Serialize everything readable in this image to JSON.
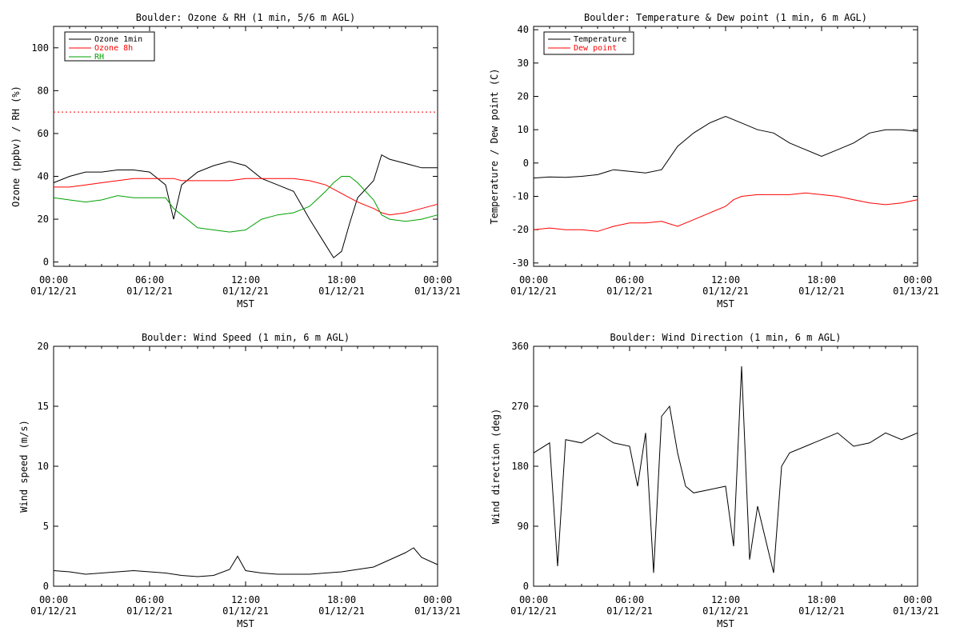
{
  "panels": {
    "ozone": {
      "title": "Boulder: Ozone & RH (1 min, 5/6 m AGL)",
      "ylabel": "Ozone (ppbv) / RH (%)",
      "xlabel": "MST",
      "legend": [
        {
          "label": "Ozone 1min",
          "color": "#000000"
        },
        {
          "label": "Ozone 8h",
          "color": "#ff0000"
        },
        {
          "label": "RH",
          "color": "#00a000"
        }
      ]
    },
    "temp": {
      "title": "Boulder: Temperature & Dew point (1 min, 6 m AGL)",
      "ylabel": "Temperature / Dew point (C)",
      "xlabel": "MST",
      "legend": [
        {
          "label": "Temperature",
          "color": "#000000"
        },
        {
          "label": "Dew point",
          "color": "#ff0000"
        }
      ]
    },
    "ws": {
      "title": "Boulder: Wind Speed (1 min, 6 m AGL)",
      "ylabel": "Wind speed (m/s)",
      "xlabel": "MST"
    },
    "wd": {
      "title": "Boulder: Wind Direction (1 min, 6 m AGL)",
      "ylabel": "Wind direction (deg)",
      "xlabel": "MST"
    }
  },
  "x_ticks": [
    {
      "time": "00:00",
      "date": "01/12/21"
    },
    {
      "time": "06:00",
      "date": "01/12/21"
    },
    {
      "time": "12:00",
      "date": "01/12/21"
    },
    {
      "time": "18:00",
      "date": "01/12/21"
    },
    {
      "time": "00:00",
      "date": "01/13/21"
    }
  ],
  "chart_data": [
    {
      "type": "line",
      "title": "Boulder: Ozone & RH (1 min, 5/6 m AGL)",
      "xlabel": "MST",
      "ylabel": "Ozone (ppbv) / RH (%)",
      "x_unit": "hour MST",
      "xlim": [
        0,
        24
      ],
      "ylim": [
        -2,
        110
      ],
      "yticks": [
        0,
        20,
        40,
        60,
        80,
        100
      ],
      "reference_line": {
        "y": 70,
        "style": "dotted",
        "color": "#ff0000"
      },
      "x": [
        0,
        1,
        2,
        3,
        4,
        5,
        6,
        7,
        7.5,
        8,
        9,
        10,
        11,
        12,
        13,
        14,
        15,
        16,
        17,
        17.5,
        18,
        18.5,
        19,
        20,
        20.5,
        21,
        22,
        23,
        24
      ],
      "series": [
        {
          "name": "Ozone 1min",
          "color": "#000000",
          "values": [
            37,
            40,
            42,
            42,
            43,
            43,
            42,
            36,
            20,
            36,
            42,
            45,
            47,
            45,
            39,
            36,
            33,
            20,
            8,
            2,
            5,
            18,
            30,
            38,
            50,
            48,
            46,
            44,
            44
          ]
        },
        {
          "name": "Ozone 8h",
          "color": "#ff0000",
          "values": [
            35,
            35,
            36,
            37,
            38,
            39,
            39,
            39,
            39,
            38,
            38,
            38,
            38,
            39,
            39,
            39,
            39,
            38,
            36,
            34,
            32,
            30,
            28,
            25,
            23,
            22,
            23,
            25,
            27
          ]
        },
        {
          "name": "RH",
          "color": "#00a000",
          "values": [
            30,
            29,
            28,
            29,
            31,
            30,
            30,
            30,
            25,
            22,
            16,
            15,
            14,
            15,
            20,
            22,
            23,
            26,
            33,
            37,
            40,
            40,
            37,
            29,
            22,
            20,
            19,
            20,
            22
          ]
        }
      ]
    },
    {
      "type": "line",
      "title": "Boulder: Temperature & Dew point (1 min, 6 m AGL)",
      "xlabel": "MST",
      "ylabel": "Temperature / Dew point (C)",
      "x_unit": "hour MST",
      "xlim": [
        0,
        24
      ],
      "ylim": [
        -31,
        41
      ],
      "yticks": [
        -30,
        -20,
        -10,
        0,
        10,
        20,
        30,
        40
      ],
      "x": [
        0,
        1,
        2,
        3,
        4,
        5,
        6,
        7,
        8,
        9,
        10,
        11,
        12,
        12.5,
        13,
        14,
        15,
        16,
        17,
        18,
        19,
        20,
        21,
        22,
        23,
        24
      ],
      "series": [
        {
          "name": "Temperature",
          "color": "#000000",
          "values": [
            -4.5,
            -4.2,
            -4.3,
            -4,
            -3.5,
            -2,
            -2.5,
            -3,
            -2,
            5,
            9,
            12,
            14,
            13,
            12,
            10,
            9,
            6,
            4,
            2,
            4,
            6,
            9,
            10,
            10,
            9.5
          ]
        },
        {
          "name": "Dew point",
          "color": "#ff0000",
          "values": [
            -20,
            -19.5,
            -20,
            -20,
            -20.5,
            -19,
            -18,
            -18,
            -17.5,
            -19,
            -17,
            -15,
            -13,
            -11,
            -10,
            -9.5,
            -9.5,
            -9.5,
            -9,
            -9.5,
            -10,
            -11,
            -12,
            -12.5,
            -12,
            -11
          ]
        }
      ]
    },
    {
      "type": "line",
      "title": "Boulder: Wind Speed (1 min, 6 m AGL)",
      "xlabel": "MST",
      "ylabel": "Wind speed (m/s)",
      "x_unit": "hour MST",
      "xlim": [
        0,
        24
      ],
      "ylim": [
        0,
        20
      ],
      "yticks": [
        0,
        5,
        10,
        15,
        20
      ],
      "x": [
        0,
        1,
        2,
        3,
        4,
        5,
        6,
        7,
        8,
        9,
        10,
        11,
        11.5,
        12,
        13,
        14,
        15,
        16,
        17,
        18,
        19,
        20,
        21,
        22,
        22.5,
        23,
        24
      ],
      "series": [
        {
          "name": "Wind speed",
          "color": "#000000",
          "values": [
            1.3,
            1.2,
            1.0,
            1.1,
            1.2,
            1.3,
            1.2,
            1.1,
            0.9,
            0.8,
            0.9,
            1.4,
            2.5,
            1.3,
            1.1,
            1.0,
            1.0,
            1.0,
            1.1,
            1.2,
            1.4,
            1.6,
            2.2,
            2.8,
            3.2,
            2.4,
            1.8
          ]
        }
      ]
    },
    {
      "type": "line",
      "title": "Boulder: Wind Direction (1 min, 6 m AGL)",
      "xlabel": "MST",
      "ylabel": "Wind direction (deg)",
      "x_unit": "hour MST",
      "xlim": [
        0,
        24
      ],
      "ylim": [
        0,
        360
      ],
      "yticks": [
        0,
        90,
        180,
        270,
        360
      ],
      "x": [
        0,
        1,
        1.5,
        2,
        3,
        4,
        5,
        6,
        6.5,
        7,
        7.5,
        8,
        8.5,
        9,
        9.5,
        10,
        11,
        12,
        12.5,
        13,
        13.5,
        14,
        15,
        15.5,
        16,
        17,
        18,
        19,
        20,
        21,
        22,
        23,
        24
      ],
      "series": [
        {
          "name": "Wind direction",
          "color": "#000000",
          "values": [
            200,
            215,
            30,
            220,
            215,
            230,
            215,
            210,
            150,
            230,
            20,
            255,
            270,
            200,
            150,
            140,
            145,
            150,
            60,
            330,
            40,
            120,
            20,
            180,
            200,
            210,
            220,
            230,
            210,
            215,
            230,
            220,
            230
          ]
        }
      ]
    }
  ]
}
